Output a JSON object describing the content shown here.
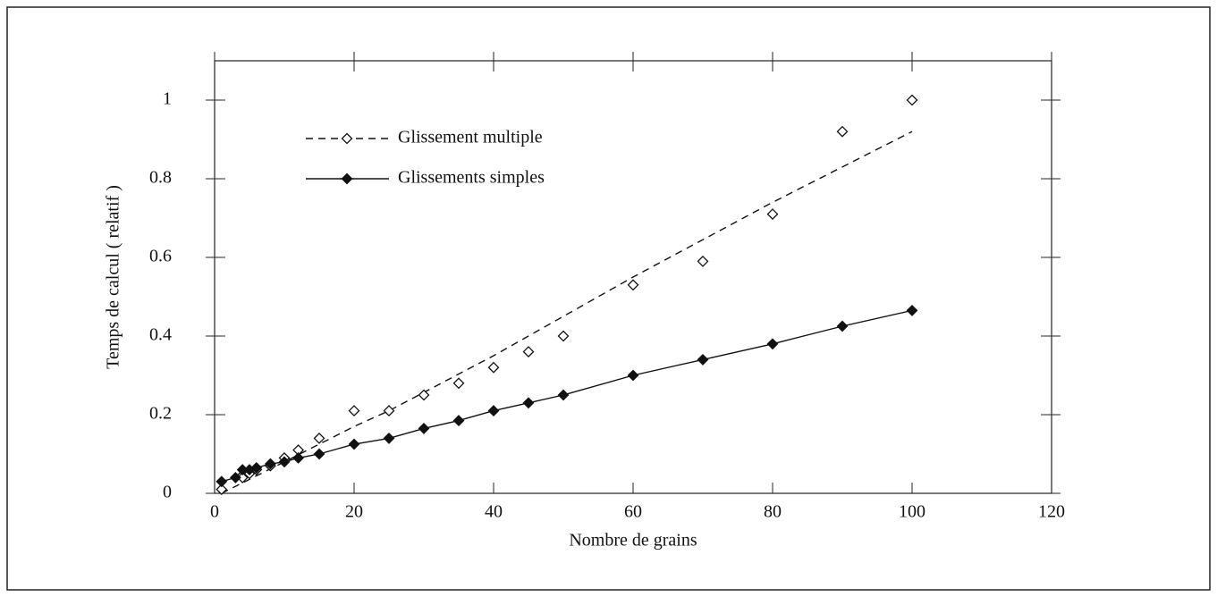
{
  "chart_data": {
    "type": "scatter",
    "xlabel": "Nombre de grains",
    "ylabel": "Temps de calcul ( relatif )",
    "xlim": [
      0,
      120
    ],
    "ylim": [
      0,
      1.1
    ],
    "xticks": [
      0,
      20,
      40,
      60,
      80,
      100,
      120
    ],
    "yticks": [
      0,
      0.2,
      0.4,
      0.6,
      0.8,
      1
    ],
    "legend": "upper left",
    "series": [
      {
        "name": "Glissement multiple",
        "color": "#111",
        "marker": "open-diamond",
        "line": "dashed-fit",
        "x": [
          1,
          4,
          5,
          6,
          8,
          10,
          12,
          15,
          20,
          25,
          30,
          35,
          40,
          45,
          50,
          60,
          70,
          80,
          90,
          100
        ],
        "values": [
          0.01,
          0.04,
          0.05,
          0.06,
          0.07,
          0.09,
          0.11,
          0.14,
          0.21,
          0.21,
          0.25,
          0.28,
          0.32,
          0.36,
          0.4,
          0.53,
          0.59,
          0.71,
          0.92,
          1.0
        ],
        "fit": {
          "x": [
            1,
            10,
            20,
            25,
            40,
            50,
            60,
            80,
            100
          ],
          "values": [
            0,
            0.08,
            0.17,
            0.21,
            0.35,
            0.45,
            0.55,
            0.74,
            0.92
          ]
        }
      },
      {
        "name": "Glissements simples",
        "color": "#111",
        "marker": "filled-diamond",
        "line": "solid",
        "x": [
          1,
          3,
          4,
          5,
          6,
          8,
          10,
          12,
          15,
          20,
          25,
          30,
          35,
          40,
          45,
          50,
          60,
          70,
          80,
          90,
          100
        ],
        "values": [
          0.03,
          0.04,
          0.06,
          0.06,
          0.065,
          0.075,
          0.08,
          0.09,
          0.1,
          0.125,
          0.14,
          0.165,
          0.185,
          0.21,
          0.23,
          0.25,
          0.3,
          0.34,
          0.38,
          0.425,
          0.465
        ]
      }
    ]
  }
}
